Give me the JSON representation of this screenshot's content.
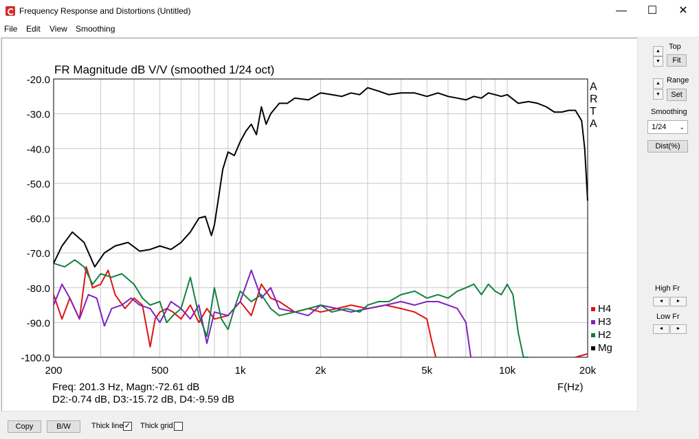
{
  "window": {
    "title": "Frequency Response and Distortions (Untitled)",
    "minimize": "—",
    "maximize": "☐",
    "close": "✕"
  },
  "menu": [
    "File",
    "Edit",
    "View",
    "Smoothing"
  ],
  "right_panel": {
    "top_label": "Top",
    "fit_button": "Fit",
    "range_label": "Range",
    "set_button": "Set",
    "smoothing_label": "Smoothing",
    "smoothing_value": "1/24",
    "dist_button": "Dist(%)",
    "high_fr_label": "High Fr",
    "low_fr_label": "Low Fr",
    "arrow_left": "◄",
    "arrow_right": "►",
    "arrow_up": "▲",
    "arrow_down": "▼"
  },
  "bottom_bar": {
    "copy_button": "Copy",
    "bw_button": "B/W",
    "thick_line_label": "Thick line",
    "thick_line_checked": true,
    "thick_grid_label": "Thick grid",
    "thick_grid_checked": false
  },
  "readout": {
    "line1": "Freq: 201.3 Hz, Magn:-72.61 dB",
    "line2": "D2:-0.74 dB, D3:-15.72 dB, D4:-9.59 dB"
  },
  "chart_data": {
    "type": "line",
    "title": "FR Magnitude dB V/V (smoothed 1/24 oct)",
    "xlabel": "F(Hz)",
    "ylabel": "",
    "x_scale": "log",
    "xlim": [
      200,
      20000
    ],
    "ylim": [
      -100,
      -20
    ],
    "grid": true,
    "watermark": "ARTA",
    "x_ticks": [
      {
        "value": 200,
        "label": "200"
      },
      {
        "value": 500,
        "label": "500"
      },
      {
        "value": 1000,
        "label": "1k"
      },
      {
        "value": 2000,
        "label": "2k"
      },
      {
        "value": 5000,
        "label": "5k"
      },
      {
        "value": 10000,
        "label": "10k"
      },
      {
        "value": 20000,
        "label": "20k"
      }
    ],
    "y_ticks": [
      "-20.0",
      "-30.0",
      "-40.0",
      "-50.0",
      "-60.0",
      "-70.0",
      "-80.0",
      "-90.0",
      "-100.0"
    ],
    "legend_position": "bottom-right",
    "series": [
      {
        "name": "Mg",
        "color": "#000000",
        "x": [
          200,
          215,
          235,
          260,
          285,
          310,
          340,
          380,
          420,
          460,
          500,
          550,
          600,
          650,
          700,
          740,
          780,
          800,
          830,
          860,
          900,
          950,
          1000,
          1050,
          1100,
          1150,
          1200,
          1250,
          1300,
          1400,
          1500,
          1600,
          1800,
          2000,
          2200,
          2400,
          2600,
          2800,
          3000,
          3300,
          3600,
          4000,
          4500,
          5000,
          5500,
          6000,
          6500,
          7000,
          7500,
          8000,
          8500,
          9000,
          9500,
          10000,
          11000,
          12000,
          13000,
          14000,
          15000,
          16000,
          17000,
          18000,
          19000,
          19500,
          20000
        ],
        "y": [
          -73,
          -68,
          -64,
          -67,
          -74,
          -70,
          -68,
          -67,
          -69.5,
          -69,
          -68,
          -69,
          -67,
          -64,
          -60,
          -59.5,
          -65,
          -62,
          -54,
          -46,
          -41,
          -42,
          -38,
          -35,
          -33,
          -36,
          -28,
          -33,
          -30,
          -27,
          -27,
          -25.5,
          -26,
          -24,
          -24.5,
          -25,
          -24,
          -24.5,
          -22.5,
          -23.5,
          -24.5,
          -24,
          -24,
          -25,
          -24,
          -25,
          -25.5,
          -26,
          -25,
          -25.5,
          -24,
          -24.5,
          -25,
          -24.5,
          -27,
          -26.5,
          -27,
          -28,
          -29.5,
          -29.5,
          -29,
          -29,
          -32,
          -40,
          -55
        ]
      },
      {
        "name": "H2",
        "color": "#108040",
        "x": [
          200,
          220,
          240,
          260,
          280,
          300,
          330,
          360,
          400,
          430,
          460,
          500,
          530,
          560,
          600,
          650,
          700,
          750,
          800,
          850,
          900,
          950,
          1000,
          1100,
          1200,
          1300,
          1400,
          1600,
          1800,
          2000,
          2200,
          2500,
          2800,
          3000,
          3300,
          3600,
          4000,
          4500,
          5000,
          5500,
          6000,
          6500,
          7000,
          7500,
          8000,
          8500,
          9000,
          9500,
          10000,
          10500,
          11000,
          11500,
          12000
        ],
        "y": [
          -73,
          -74,
          -72,
          -74,
          -79,
          -76,
          -77,
          -76,
          -79,
          -83,
          -85,
          -84,
          -90,
          -88,
          -86,
          -77,
          -88,
          -94,
          -80,
          -89,
          -92,
          -86,
          -81,
          -84,
          -82,
          -86,
          -88,
          -87,
          -86,
          -85,
          -87,
          -86,
          -87,
          -85,
          -84,
          -84,
          -82,
          -81,
          -83,
          -82,
          -83,
          -81,
          -80,
          -79,
          -82,
          -79,
          -81,
          -82,
          -79,
          -82,
          -93,
          -100,
          -100
        ]
      },
      {
        "name": "H3",
        "color": "#8020c0",
        "x": [
          200,
          215,
          230,
          250,
          270,
          290,
          310,
          330,
          360,
          390,
          420,
          460,
          500,
          550,
          600,
          650,
          700,
          750,
          800,
          900,
          1000,
          1100,
          1200,
          1300,
          1400,
          1600,
          1800,
          2000,
          2300,
          2600,
          3000,
          3500,
          4000,
          4500,
          5000,
          5500,
          6000,
          6500,
          7000,
          7300
        ],
        "y": [
          -85,
          -79,
          -83,
          -89,
          -82,
          -83,
          -91,
          -86,
          -85,
          -83,
          -85,
          -86,
          -90,
          -84,
          -86,
          -89,
          -85,
          -96,
          -87,
          -88,
          -84,
          -75,
          -83,
          -80,
          -86,
          -87,
          -88,
          -85,
          -86,
          -87,
          -86,
          -85,
          -84,
          -85,
          -84,
          -84,
          -85,
          -86,
          -90,
          -100
        ]
      },
      {
        "name": "H4",
        "color": "#e01010",
        "x": [
          200,
          215,
          230,
          250,
          265,
          280,
          300,
          320,
          340,
          370,
          400,
          430,
          460,
          480,
          500,
          530,
          560,
          600,
          650,
          700,
          750,
          800,
          900,
          1000,
          1100,
          1200,
          1300,
          1400,
          1600,
          1800,
          2000,
          2300,
          2600,
          3000,
          3500,
          4000,
          4500,
          5000,
          5200,
          5400
        ],
        "y": [
          -82,
          -89,
          -83,
          -89,
          -74,
          -80,
          -79,
          -75,
          -82,
          -86,
          -83,
          -85,
          -97,
          -89,
          -87,
          -86,
          -87,
          -89,
          -85,
          -90,
          -86,
          -89,
          -88,
          -84,
          -88,
          -79,
          -83,
          -84,
          -87,
          -86,
          -87,
          -86,
          -85,
          -86,
          -85,
          -86,
          -87,
          -89,
          -95,
          -100
        ]
      }
    ],
    "h4_hf_tail": {
      "x": [
        18000,
        19000,
        20000
      ],
      "y": [
        -100,
        -99.5,
        -99
      ]
    }
  }
}
